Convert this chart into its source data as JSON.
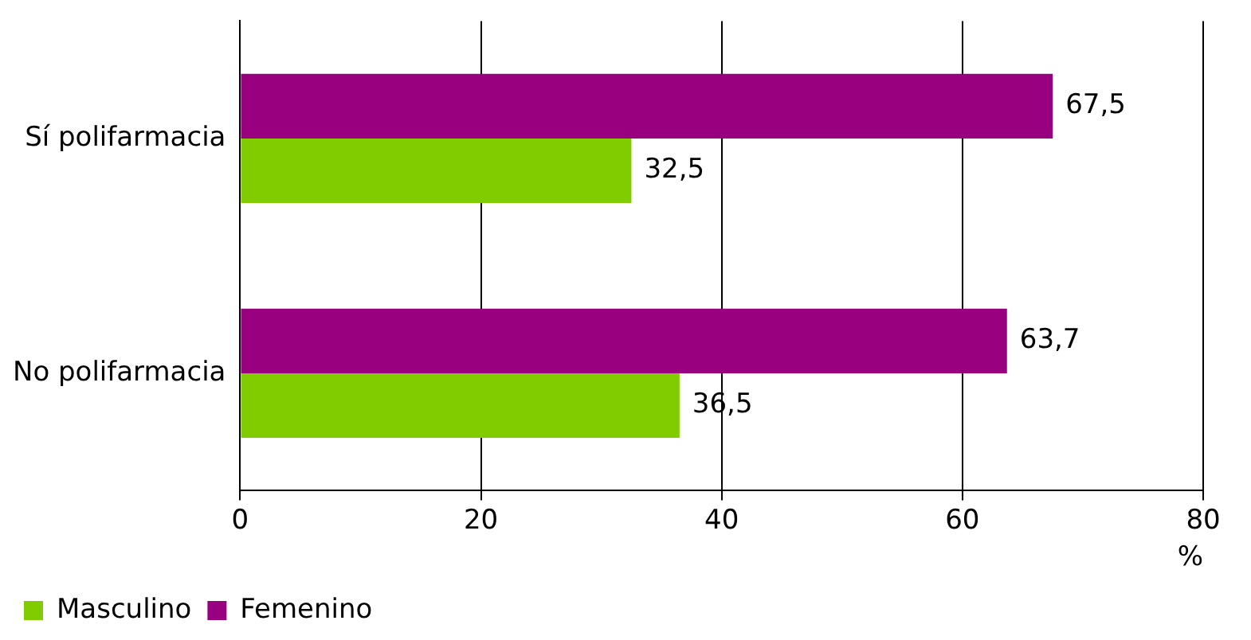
{
  "chart_data": {
    "type": "bar",
    "orientation": "horizontal",
    "xlabel": "%",
    "categories": [
      "Sí polifarmacia",
      "No polifarmacia"
    ],
    "series": [
      {
        "name": "Masculino",
        "color": "#80cc00",
        "values": [
          32.5,
          36.5
        ],
        "value_labels": [
          "32,5",
          "36,5"
        ]
      },
      {
        "name": "Femenino",
        "color": "#990080",
        "values": [
          67.5,
          63.7
        ],
        "value_labels": [
          "67,5",
          "63,7"
        ]
      }
    ],
    "xlim": [
      0,
      80
    ],
    "xticks": [
      0,
      20,
      40,
      60,
      80
    ],
    "grid": "x",
    "legend": "bottom left"
  }
}
